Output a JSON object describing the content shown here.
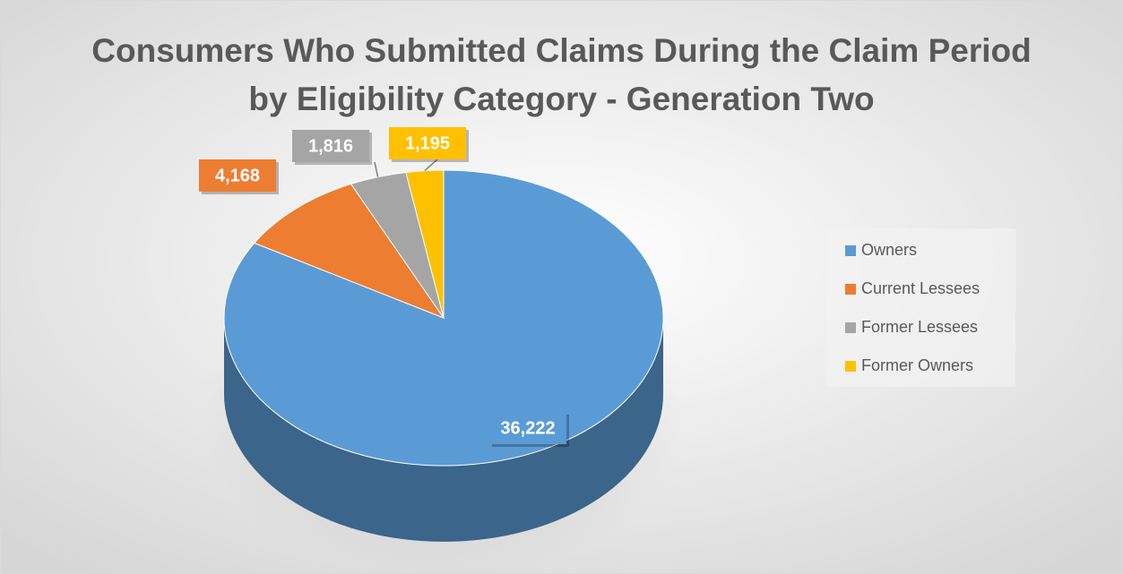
{
  "chart_data": {
    "type": "pie",
    "title": "Consumers Who Submitted Claims During the Claim Period by Eligibility Category - Generation Two",
    "categories": [
      "Owners",
      "Current Lessees",
      "Former Lessees",
      "Former Owners"
    ],
    "values": [
      36222,
      4168,
      1816,
      1195
    ],
    "value_labels": [
      "36,222",
      "4,168",
      "1,816",
      "1,195"
    ],
    "colors": [
      "#5b9bd5",
      "#ed7d31",
      "#a5a5a5",
      "#ffc000"
    ],
    "legend": "right"
  }
}
